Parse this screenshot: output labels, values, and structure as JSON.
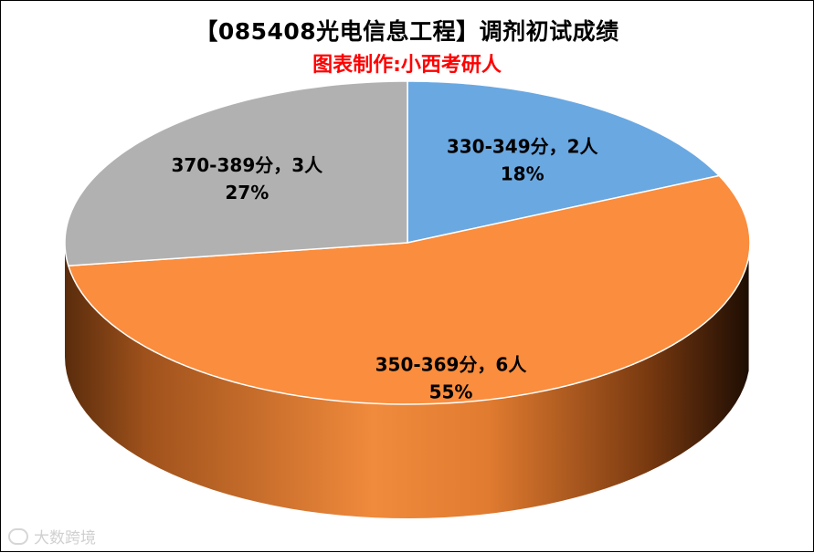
{
  "chart_data": {
    "type": "pie",
    "title": "【085408光电信息工程】调剂初试成绩",
    "subtitle": "图表制作:小西考研人",
    "slices": [
      {
        "label": "330-349分，2人",
        "count": 2,
        "percent": "18%",
        "color": "#6aa8e2"
      },
      {
        "label": "350-369分，6人",
        "count": 6,
        "percent": "55%",
        "color": "#fa8d3e"
      },
      {
        "label": "370-389分，3人",
        "count": 3,
        "percent": "27%",
        "color": "#b1b1b1"
      }
    ],
    "style": "3d"
  },
  "watermark": "大数跨境"
}
